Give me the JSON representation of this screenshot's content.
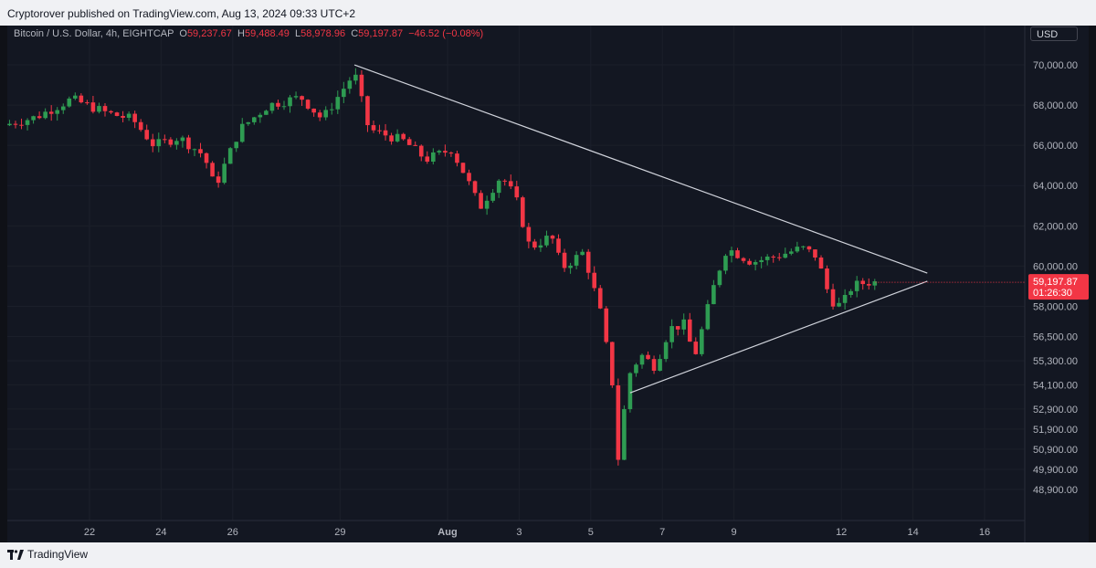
{
  "header": {
    "published_text": "Cryptorover published on TradingView.com, Aug 13, 2024 09:33 UTC+2"
  },
  "legend": {
    "symbol": "Bitcoin / U.S. Dollar, 4h, EIGHTCAP",
    "o_label": "O",
    "o_value": "59,237.67",
    "h_label": "H",
    "h_value": "59,488.49",
    "l_label": "L",
    "l_value": "58,978.96",
    "c_label": "C",
    "c_value": "59,197.87",
    "change": "−46.52 (−0.08%)"
  },
  "currency": "USD",
  "price_tag": {
    "price": "59,197.87",
    "countdown": "01:26:30"
  },
  "footer": {
    "logo_text": "TradingView"
  },
  "colors": {
    "up": "#2e9c52",
    "down": "#f23645",
    "background": "#131722",
    "trendline": "#d1d4dc"
  },
  "chart_data": {
    "type": "candlestick",
    "interval": "4h",
    "y_ticks": [
      "48,900.00",
      "49,900.00",
      "50,900.00",
      "51,900.00",
      "52,900.00",
      "54,100.00",
      "55,300.00",
      "56,500.00",
      "58,000.00",
      "60,000.00",
      "62,000.00",
      "64,000.00",
      "66,000.00",
      "68,000.00",
      "70,000.00"
    ],
    "y_tick_values": [
      48900,
      49900,
      50900,
      51900,
      52900,
      54100,
      55300,
      56500,
      58000,
      60000,
      62000,
      64000,
      66000,
      68000,
      70000
    ],
    "x_ticks": [
      {
        "label": "22",
        "day": 22
      },
      {
        "label": "24",
        "day": 24
      },
      {
        "label": "26",
        "day": 26
      },
      {
        "label": "29",
        "day": 29
      },
      {
        "label": "Aug",
        "day": 32
      },
      {
        "label": "3",
        "day": 34
      },
      {
        "label": "5",
        "day": 36
      },
      {
        "label": "7",
        "day": 38
      },
      {
        "label": "9",
        "day": 40
      },
      {
        "label": "12",
        "day": 43
      },
      {
        "label": "14",
        "day": 45
      },
      {
        "label": "16",
        "day": 47
      }
    ],
    "anchors": [
      {
        "day": 19.6,
        "price": 67000
      },
      {
        "day": 20.5,
        "price": 67400
      },
      {
        "day": 21.5,
        "price": 68300
      },
      {
        "day": 22.5,
        "price": 67600
      },
      {
        "day": 23.2,
        "price": 67300
      },
      {
        "day": 23.8,
        "price": 66000
      },
      {
        "day": 24.5,
        "price": 66400
      },
      {
        "day": 25.2,
        "price": 65500
      },
      {
        "day": 25.5,
        "price": 63900
      },
      {
        "day": 26.2,
        "price": 66800
      },
      {
        "day": 27.0,
        "price": 68000
      },
      {
        "day": 27.9,
        "price": 68400
      },
      {
        "day": 28.5,
        "price": 67300
      },
      {
        "day": 29.4,
        "price": 69600
      },
      {
        "day": 29.8,
        "price": 66800
      },
      {
        "day": 30.8,
        "price": 66200
      },
      {
        "day": 31.4,
        "price": 65300
      },
      {
        "day": 32.1,
        "price": 65800
      },
      {
        "day": 32.5,
        "price": 64500
      },
      {
        "day": 32.9,
        "price": 62900
      },
      {
        "day": 33.5,
        "price": 64500
      },
      {
        "day": 33.9,
        "price": 63400
      },
      {
        "day": 34.3,
        "price": 60900
      },
      {
        "day": 34.9,
        "price": 61500
      },
      {
        "day": 35.2,
        "price": 59900
      },
      {
        "day": 35.8,
        "price": 60700
      },
      {
        "day": 36.3,
        "price": 57500
      },
      {
        "day": 36.6,
        "price": 54200
      },
      {
        "day": 36.8,
        "price": 49700
      },
      {
        "day": 37.0,
        "price": 54400
      },
      {
        "day": 37.4,
        "price": 55600
      },
      {
        "day": 37.8,
        "price": 55000
      },
      {
        "day": 38.2,
        "price": 56900
      },
      {
        "day": 38.6,
        "price": 57100
      },
      {
        "day": 38.9,
        "price": 55500
      },
      {
        "day": 39.1,
        "price": 56800
      },
      {
        "day": 39.5,
        "price": 59400
      },
      {
        "day": 39.8,
        "price": 60900
      },
      {
        "day": 40.5,
        "price": 60200
      },
      {
        "day": 41.2,
        "price": 60500
      },
      {
        "day": 41.9,
        "price": 60900
      },
      {
        "day": 42.3,
        "price": 60500
      },
      {
        "day": 42.7,
        "price": 58300
      },
      {
        "day": 43.0,
        "price": 58000
      },
      {
        "day": 43.3,
        "price": 59000
      },
      {
        "day": 43.7,
        "price": 59200
      },
      {
        "day": 43.95,
        "price": 59198
      }
    ],
    "trendlines": [
      {
        "name": "upper",
        "from": {
          "day": 29.4,
          "price": 70000
        },
        "to": {
          "day": 45.4,
          "price": 59650
        }
      },
      {
        "name": "lower",
        "from": {
          "day": 37.1,
          "price": 53700
        },
        "to": {
          "day": 45.4,
          "price": 59250
        }
      }
    ]
  }
}
